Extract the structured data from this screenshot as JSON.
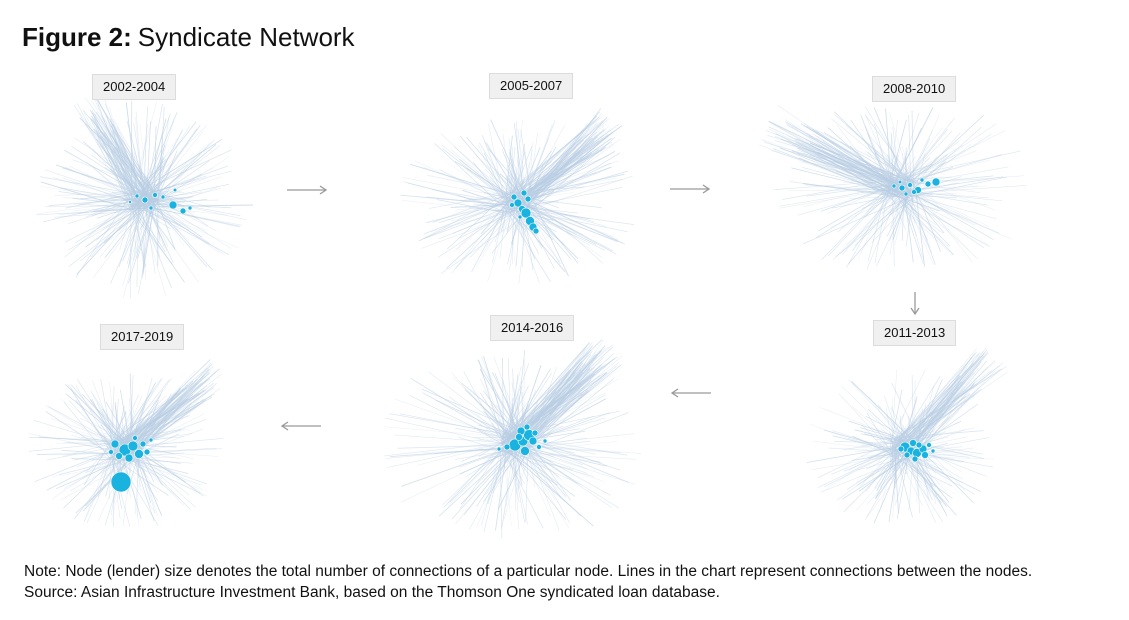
{
  "figure": {
    "label": "Figure 2:",
    "title": "Syndicate Network"
  },
  "colors": {
    "edge": "#b8cde3",
    "node": "#1ab3e0",
    "arrow": "#9a9a9a",
    "label_bg": "#f0f0f0"
  },
  "flow_order": [
    "2002-2004",
    "2005-2007",
    "2008-2010",
    "2011-2013",
    "2014-2016",
    "2017-2019"
  ],
  "networks": [
    {
      "period": "2002-2004"
    },
    {
      "period": "2005-2007"
    },
    {
      "period": "2008-2010"
    },
    {
      "period": "2011-2013"
    },
    {
      "period": "2014-2016"
    },
    {
      "period": "2017-2019"
    }
  ],
  "note": {
    "line1": "Note: Node (lender) size denotes the total number of connections of a particular node. Lines in the chart represent connections between the nodes.",
    "line2": "Source: Asian Infrastructure Investment Bank, based on the Thomson One syndicated loan database."
  }
}
